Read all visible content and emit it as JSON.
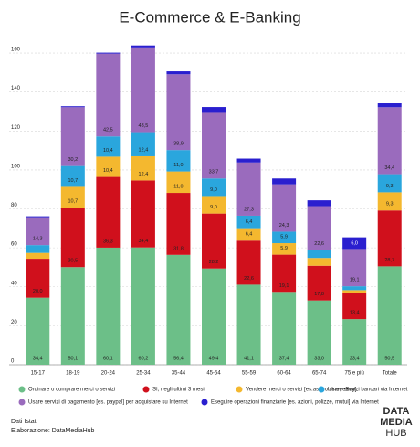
{
  "chart_data": {
    "type": "stacked-bar",
    "title": "E-Commerce & E-Banking",
    "categories": [
      "15-17",
      "18-19",
      "20-24",
      "25-34",
      "35-44",
      "45-54",
      "55-59",
      "60-64",
      "65-74",
      "75 e più",
      "Totale"
    ],
    "series": [
      {
        "name": "Ordinare o comprare merci o servizi",
        "color": "#6cbf88",
        "values": [
          34.4,
          50.1,
          60.1,
          60.2,
          56.4,
          49.4,
          41.1,
          37.4,
          33.0,
          23.4,
          50.5
        ],
        "value_labels": [
          "34,4",
          "50,1",
          "60,1",
          "60,2",
          "56,4",
          "49,4",
          "41,1",
          "37,4",
          "33,0",
          "23,4",
          "50,5"
        ]
      },
      {
        "name": "Sì, negli ultimi 3 mesi",
        "color": "#d0101c",
        "values": [
          20.0,
          30.5,
          36.3,
          34.4,
          31.8,
          28.2,
          22.6,
          19.1,
          17.8,
          13.4,
          28.7
        ],
        "value_labels": [
          "20,0",
          "30,5",
          "36,3",
          "34,4",
          "31,8",
          "28,2",
          "22,6",
          "19,1",
          "17,8",
          "13,4",
          "28,7"
        ]
      },
      {
        "name": "Vendere merci o servizi [es.aste online, eBay]",
        "color": "#f4b82f",
        "values": [
          3,
          10.7,
          10.4,
          12.4,
          11.0,
          9.0,
          6.4,
          5.9,
          4,
          1.5,
          9.3
        ],
        "value_labels": [
          null,
          "10,7",
          "10,4",
          "12,4",
          "11,0",
          "9,0",
          "6,4",
          "5,9",
          null,
          null,
          "9,3"
        ]
      },
      {
        "name": "Usare servizi bancari via Internet",
        "color": "#2aa6dd",
        "values": [
          4,
          10.7,
          10.4,
          12.4,
          11.0,
          9.0,
          6.4,
          5.9,
          4,
          2,
          9.3
        ],
        "value_labels": [
          null,
          "10,7",
          "10,4",
          "12,4",
          "11,0",
          "9,0",
          "6,4",
          "5,9",
          null,
          null,
          "9,3"
        ]
      },
      {
        "name": "Usare servizi di pagamento [es. paypal] per acquistare su Internet",
        "color": "#9a6bbd",
        "values": [
          14.3,
          30.2,
          42.5,
          43.5,
          38.9,
          33.7,
          27.3,
          24.3,
          22.6,
          19.1,
          34.4
        ],
        "value_labels": [
          "14,3",
          "30,2",
          "42,5",
          "43,5",
          "38,9",
          "33,7",
          "27,3",
          "24,3",
          "22,6",
          "19,1",
          "34,4"
        ]
      },
      {
        "name": "Eseguire operazioni finanziarie [es. azioni, polizze, mutui] via Internet",
        "color": "#2a1fcf",
        "values": [
          0.5,
          0.5,
          0.5,
          1,
          1.5,
          3,
          2,
          3,
          3,
          6.0,
          2
        ],
        "value_labels": [
          null,
          null,
          null,
          null,
          null,
          null,
          null,
          null,
          null,
          "6,0",
          null
        ]
      }
    ],
    "ylim": [
      0,
      164
    ],
    "yticks": [
      0,
      20,
      40,
      60,
      80,
      100,
      120,
      140,
      160
    ],
    "grid": true,
    "notes": [
      "Dati Istat",
      "Elaborazione: DataMediaHub"
    ],
    "logo": [
      "DATA",
      "MEDIA",
      "HUB"
    ]
  }
}
